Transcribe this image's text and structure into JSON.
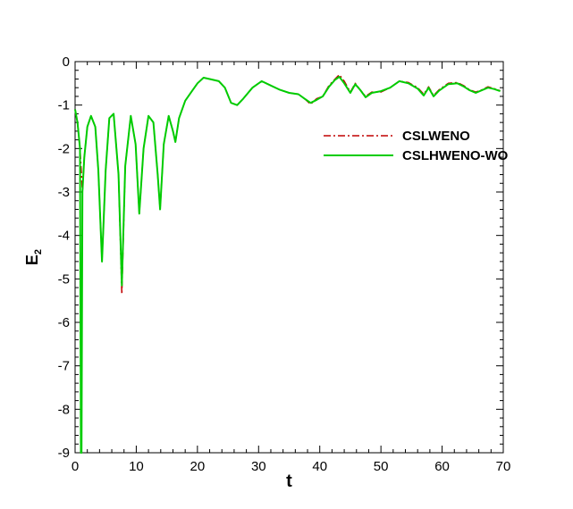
{
  "chart_data": {
    "type": "line",
    "xlabel": "t",
    "ylabel": "E",
    "ylabel_subscript": "2",
    "xlim": [
      0,
      70
    ],
    "ylim": [
      -9,
      0
    ],
    "xticks": [
      0,
      10,
      20,
      30,
      40,
      50,
      60,
      70
    ],
    "yticks": [
      0,
      -1,
      -2,
      -3,
      -4,
      -5,
      -6,
      -7,
      -8,
      -9
    ],
    "grid": false,
    "legend_position": "upper-right",
    "series": [
      {
        "name": "CSLWENO",
        "color": "#c00000",
        "dash": "dash-dot",
        "points": [
          [
            0,
            -1.1
          ],
          [
            0.4,
            -1.4
          ],
          [
            0.8,
            -2.0
          ],
          [
            1.2,
            -3.0
          ],
          [
            1.5,
            -2.2
          ],
          [
            2.0,
            -1.5
          ],
          [
            2.6,
            -1.25
          ],
          [
            3.3,
            -1.5
          ],
          [
            3.8,
            -2.5
          ],
          [
            4.4,
            -4.6
          ],
          [
            5.0,
            -2.5
          ],
          [
            5.6,
            -1.3
          ],
          [
            6.3,
            -1.2
          ],
          [
            7.1,
            -2.6
          ],
          [
            7.65,
            -5.35
          ],
          [
            8.2,
            -2.4
          ],
          [
            9.1,
            -1.25
          ],
          [
            9.9,
            -1.9
          ],
          [
            10.5,
            -3.5
          ],
          [
            11.2,
            -2.0
          ],
          [
            12.0,
            -1.25
          ],
          [
            12.8,
            -1.4
          ],
          [
            13.5,
            -2.6
          ],
          [
            13.9,
            -3.4
          ],
          [
            14.5,
            -1.9
          ],
          [
            15.3,
            -1.25
          ],
          [
            16.0,
            -1.6
          ],
          [
            16.4,
            -1.85
          ],
          [
            17.0,
            -1.3
          ],
          [
            18.0,
            -0.9
          ],
          [
            19.0,
            -0.7
          ],
          [
            20.0,
            -0.5
          ],
          [
            21.0,
            -0.37
          ],
          [
            22.0,
            -0.4
          ],
          [
            23.5,
            -0.45
          ],
          [
            24.5,
            -0.6
          ],
          [
            25.5,
            -0.95
          ],
          [
            26.5,
            -1.0
          ],
          [
            27.5,
            -0.85
          ],
          [
            29.0,
            -0.6
          ],
          [
            30.5,
            -0.45
          ],
          [
            32.0,
            -0.55
          ],
          [
            33.5,
            -0.65
          ],
          [
            35.0,
            -0.72
          ],
          [
            36.5,
            -0.75
          ],
          [
            37.5,
            -0.85
          ],
          [
            38.5,
            -0.98
          ],
          [
            39.5,
            -0.85
          ],
          [
            40.5,
            -0.8
          ],
          [
            41.5,
            -0.55
          ],
          [
            42.5,
            -0.4
          ],
          [
            43.2,
            -0.3
          ],
          [
            44.0,
            -0.45
          ],
          [
            45.0,
            -0.7
          ],
          [
            45.8,
            -0.5
          ],
          [
            46.6,
            -0.65
          ],
          [
            47.5,
            -0.8
          ],
          [
            48.5,
            -0.7
          ],
          [
            50.0,
            -0.7
          ],
          [
            51.5,
            -0.6
          ],
          [
            53.0,
            -0.45
          ],
          [
            54.5,
            -0.48
          ],
          [
            56.0,
            -0.6
          ],
          [
            57.0,
            -0.75
          ],
          [
            57.8,
            -0.58
          ],
          [
            58.6,
            -0.78
          ],
          [
            59.5,
            -0.65
          ],
          [
            61.0,
            -0.5
          ],
          [
            62.5,
            -0.48
          ],
          [
            63.5,
            -0.55
          ],
          [
            64.5,
            -0.65
          ],
          [
            65.5,
            -0.7
          ],
          [
            66.5,
            -0.65
          ],
          [
            67.5,
            -0.58
          ],
          [
            68.5,
            -0.62
          ],
          [
            69.5,
            -0.67
          ]
        ]
      },
      {
        "name": "CSLHWENO-WO",
        "color": "#00cc00",
        "dash": "solid",
        "points": [
          [
            0,
            -1.1
          ],
          [
            0.4,
            -1.4
          ],
          [
            0.8,
            -2.0
          ],
          [
            1.2,
            -3.0
          ],
          [
            1.5,
            -2.2
          ],
          [
            2.0,
            -1.5
          ],
          [
            2.6,
            -1.25
          ],
          [
            3.3,
            -1.5
          ],
          [
            3.8,
            -2.5
          ],
          [
            4.4,
            -4.6
          ],
          [
            5.0,
            -2.5
          ],
          [
            5.6,
            -1.3
          ],
          [
            6.3,
            -1.2
          ],
          [
            7.1,
            -2.6
          ],
          [
            7.65,
            -5.15
          ],
          [
            8.2,
            -2.4
          ],
          [
            9.1,
            -1.25
          ],
          [
            9.9,
            -1.9
          ],
          [
            10.5,
            -3.5
          ],
          [
            11.2,
            -2.0
          ],
          [
            12.0,
            -1.25
          ],
          [
            12.8,
            -1.4
          ],
          [
            13.5,
            -2.6
          ],
          [
            13.9,
            -3.4
          ],
          [
            14.5,
            -1.9
          ],
          [
            15.3,
            -1.25
          ],
          [
            16.0,
            -1.6
          ],
          [
            16.4,
            -1.85
          ],
          [
            17.0,
            -1.3
          ],
          [
            18.0,
            -0.9
          ],
          [
            19.0,
            -0.7
          ],
          [
            20.0,
            -0.5
          ],
          [
            21.0,
            -0.37
          ],
          [
            22.0,
            -0.4
          ],
          [
            23.5,
            -0.45
          ],
          [
            24.5,
            -0.6
          ],
          [
            25.5,
            -0.95
          ],
          [
            26.5,
            -1.0
          ],
          [
            27.5,
            -0.85
          ],
          [
            29.0,
            -0.6
          ],
          [
            30.5,
            -0.45
          ],
          [
            32.0,
            -0.55
          ],
          [
            33.5,
            -0.65
          ],
          [
            35.0,
            -0.72
          ],
          [
            36.5,
            -0.75
          ],
          [
            37.5,
            -0.85
          ],
          [
            38.5,
            -0.95
          ],
          [
            39.5,
            -0.88
          ],
          [
            40.5,
            -0.8
          ],
          [
            41.5,
            -0.58
          ],
          [
            42.5,
            -0.42
          ],
          [
            43.2,
            -0.35
          ],
          [
            44.0,
            -0.5
          ],
          [
            45.0,
            -0.72
          ],
          [
            45.8,
            -0.52
          ],
          [
            46.6,
            -0.65
          ],
          [
            47.5,
            -0.82
          ],
          [
            48.5,
            -0.72
          ],
          [
            50.0,
            -0.68
          ],
          [
            51.5,
            -0.6
          ],
          [
            53.0,
            -0.45
          ],
          [
            54.5,
            -0.5
          ],
          [
            56.0,
            -0.62
          ],
          [
            57.0,
            -0.78
          ],
          [
            57.8,
            -0.6
          ],
          [
            58.6,
            -0.8
          ],
          [
            59.5,
            -0.67
          ],
          [
            61.0,
            -0.52
          ],
          [
            62.5,
            -0.5
          ],
          [
            63.5,
            -0.57
          ],
          [
            64.5,
            -0.66
          ],
          [
            65.5,
            -0.72
          ],
          [
            66.5,
            -0.66
          ],
          [
            67.5,
            -0.6
          ],
          [
            68.5,
            -0.63
          ],
          [
            69.5,
            -0.68
          ]
        ]
      }
    ]
  }
}
